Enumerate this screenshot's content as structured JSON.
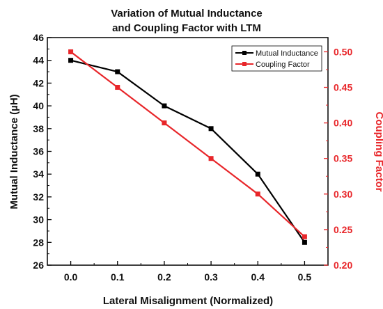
{
  "chart_data": {
    "type": "line",
    "title_lines": [
      "Variation of Mutual Inductance",
      "and Coupling Factor with LTM"
    ],
    "xlabel": "Lateral Misalignment (Normalized)",
    "ylabel_left": "Mutual Inductance (µH)",
    "ylabel_right": "Coupling Factor",
    "x": [
      0.0,
      0.1,
      0.2,
      0.3,
      0.4,
      0.5
    ],
    "x_ticks": [
      "0.0",
      "0.1",
      "0.2",
      "0.3",
      "0.4",
      "0.5"
    ],
    "xlim": [
      -0.05,
      0.55
    ],
    "ylim_left": [
      26,
      46
    ],
    "ylim_right": [
      0.2,
      0.52
    ],
    "left_ticks": [
      "26",
      "28",
      "30",
      "32",
      "34",
      "36",
      "38",
      "40",
      "42",
      "44",
      "46"
    ],
    "right_ticks": [
      "0.20",
      "0.25",
      "0.30",
      "0.35",
      "0.40",
      "0.45",
      "0.50"
    ],
    "legend_position": "top-right",
    "series": [
      {
        "name": "Mutual Inductance",
        "axis": "left",
        "color": "#000000",
        "values": [
          44,
          43,
          40,
          38,
          34,
          28
        ]
      },
      {
        "name": "Coupling Factor",
        "axis": "right",
        "color": "#e8262a",
        "values": [
          0.5,
          0.45,
          0.4,
          0.35,
          0.3,
          0.24
        ]
      }
    ]
  }
}
